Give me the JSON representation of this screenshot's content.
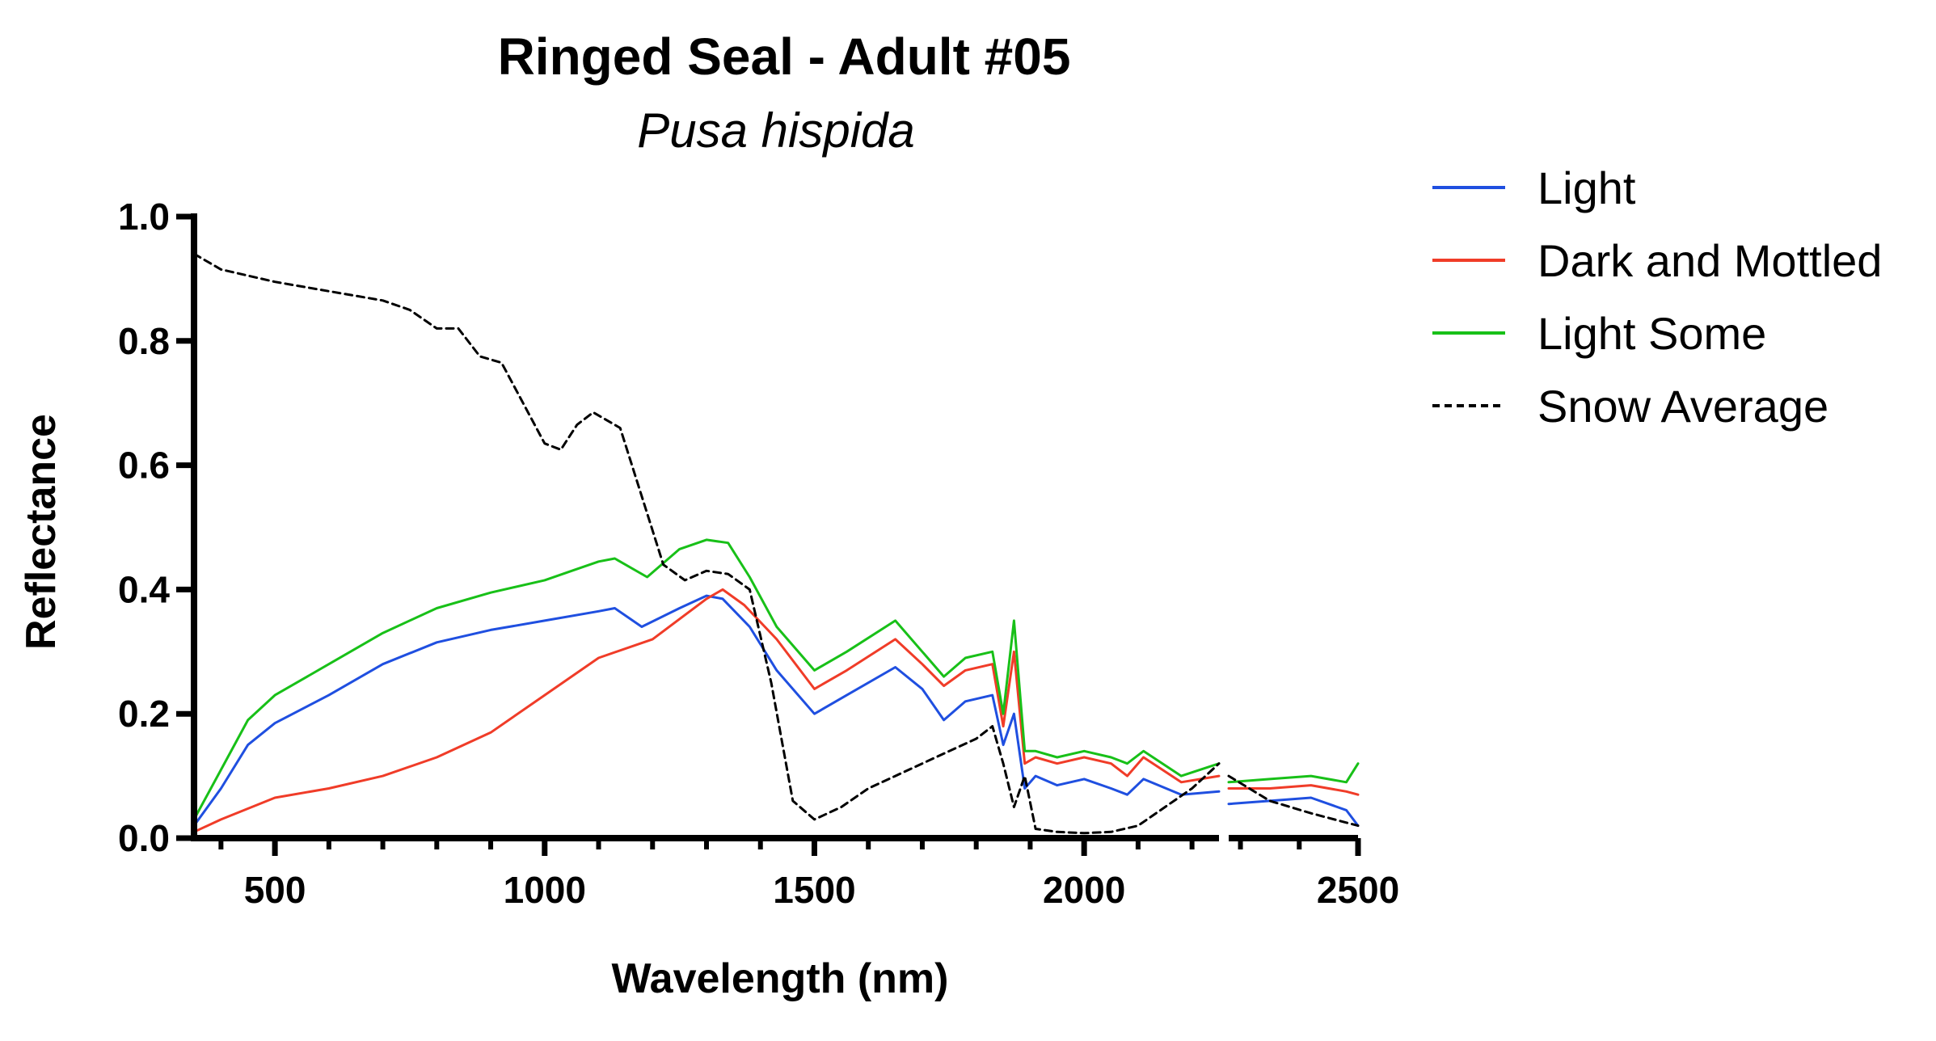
{
  "chart_data": {
    "type": "line",
    "title": "Ringed Seal - Adult #05",
    "subtitle": "Pusa hispida",
    "xlabel": "Wavelength (nm)",
    "ylabel": "Reflectance",
    "xlim": [
      350,
      2500
    ],
    "ylim": [
      0,
      1.0
    ],
    "axis_break_x": [
      2250,
      2280
    ],
    "x_ticks": [
      500,
      1000,
      1500,
      2000,
      2500
    ],
    "x_tick_labels": [
      "500",
      "1000",
      "1500",
      "2000",
      "2500"
    ],
    "y_ticks": [
      0.0,
      0.2,
      0.4,
      0.6,
      0.8,
      1.0
    ],
    "y_tick_labels": [
      "0.0",
      "0.2",
      "0.4",
      "0.6",
      "0.8",
      "1.0"
    ],
    "grid": false,
    "legend_position": "top-right",
    "series": [
      {
        "name": "Light",
        "color": "#1f4fe0",
        "dash": "solid",
        "points": [
          [
            350,
            0.02
          ],
          [
            400,
            0.08
          ],
          [
            450,
            0.15
          ],
          [
            500,
            0.185
          ],
          [
            600,
            0.23
          ],
          [
            700,
            0.28
          ],
          [
            800,
            0.315
          ],
          [
            900,
            0.335
          ],
          [
            1000,
            0.35
          ],
          [
            1100,
            0.365
          ],
          [
            1130,
            0.37
          ],
          [
            1180,
            0.34
          ],
          [
            1250,
            0.37
          ],
          [
            1300,
            0.39
          ],
          [
            1330,
            0.385
          ],
          [
            1380,
            0.34
          ],
          [
            1430,
            0.27
          ],
          [
            1500,
            0.2
          ],
          [
            1560,
            0.23
          ],
          [
            1650,
            0.275
          ],
          [
            1700,
            0.24
          ],
          [
            1740,
            0.19
          ],
          [
            1780,
            0.22
          ],
          [
            1830,
            0.23
          ],
          [
            1850,
            0.15
          ],
          [
            1870,
            0.2
          ],
          [
            1890,
            0.08
          ],
          [
            1910,
            0.1
          ],
          [
            1950,
            0.085
          ],
          [
            2000,
            0.095
          ],
          [
            2050,
            0.08
          ],
          [
            2080,
            0.07
          ],
          [
            2110,
            0.095
          ],
          [
            2180,
            0.07
          ],
          [
            2250,
            0.075
          ],
          [
            2280,
            0.055
          ],
          [
            2350,
            0.06
          ],
          [
            2420,
            0.065
          ],
          [
            2480,
            0.045
          ],
          [
            2500,
            0.02
          ]
        ]
      },
      {
        "name": "Dark and Mottled",
        "color": "#f03c28",
        "dash": "solid",
        "points": [
          [
            350,
            0.01
          ],
          [
            400,
            0.03
          ],
          [
            500,
            0.065
          ],
          [
            600,
            0.08
          ],
          [
            700,
            0.1
          ],
          [
            800,
            0.13
          ],
          [
            900,
            0.17
          ],
          [
            1000,
            0.23
          ],
          [
            1100,
            0.29
          ],
          [
            1200,
            0.32
          ],
          [
            1300,
            0.385
          ],
          [
            1330,
            0.4
          ],
          [
            1370,
            0.375
          ],
          [
            1430,
            0.32
          ],
          [
            1500,
            0.24
          ],
          [
            1560,
            0.27
          ],
          [
            1650,
            0.32
          ],
          [
            1700,
            0.28
          ],
          [
            1740,
            0.245
          ],
          [
            1780,
            0.27
          ],
          [
            1830,
            0.28
          ],
          [
            1850,
            0.18
          ],
          [
            1870,
            0.3
          ],
          [
            1890,
            0.12
          ],
          [
            1910,
            0.13
          ],
          [
            1950,
            0.12
          ],
          [
            2000,
            0.13
          ],
          [
            2050,
            0.12
          ],
          [
            2080,
            0.1
          ],
          [
            2110,
            0.13
          ],
          [
            2180,
            0.09
          ],
          [
            2250,
            0.1
          ],
          [
            2280,
            0.08
          ],
          [
            2350,
            0.08
          ],
          [
            2420,
            0.085
          ],
          [
            2480,
            0.075
          ],
          [
            2500,
            0.07
          ]
        ]
      },
      {
        "name": "Light Some",
        "color": "#18c018",
        "dash": "solid",
        "points": [
          [
            350,
            0.03
          ],
          [
            400,
            0.11
          ],
          [
            450,
            0.19
          ],
          [
            500,
            0.23
          ],
          [
            600,
            0.28
          ],
          [
            700,
            0.33
          ],
          [
            800,
            0.37
          ],
          [
            900,
            0.395
          ],
          [
            1000,
            0.415
          ],
          [
            1050,
            0.43
          ],
          [
            1100,
            0.445
          ],
          [
            1130,
            0.45
          ],
          [
            1190,
            0.42
          ],
          [
            1250,
            0.465
          ],
          [
            1300,
            0.48
          ],
          [
            1340,
            0.475
          ],
          [
            1380,
            0.42
          ],
          [
            1430,
            0.34
          ],
          [
            1500,
            0.27
          ],
          [
            1560,
            0.3
          ],
          [
            1650,
            0.35
          ],
          [
            1700,
            0.3
          ],
          [
            1740,
            0.26
          ],
          [
            1780,
            0.29
          ],
          [
            1830,
            0.3
          ],
          [
            1850,
            0.2
          ],
          [
            1870,
            0.35
          ],
          [
            1890,
            0.14
          ],
          [
            1910,
            0.14
          ],
          [
            1950,
            0.13
          ],
          [
            2000,
            0.14
          ],
          [
            2050,
            0.13
          ],
          [
            2080,
            0.12
          ],
          [
            2110,
            0.14
          ],
          [
            2180,
            0.1
          ],
          [
            2250,
            0.12
          ],
          [
            2280,
            0.09
          ],
          [
            2350,
            0.095
          ],
          [
            2420,
            0.1
          ],
          [
            2480,
            0.09
          ],
          [
            2500,
            0.12
          ]
        ]
      },
      {
        "name": "Snow Average",
        "color": "#000000",
        "dash": "dashed",
        "points": [
          [
            350,
            0.94
          ],
          [
            400,
            0.915
          ],
          [
            500,
            0.895
          ],
          [
            600,
            0.88
          ],
          [
            700,
            0.865
          ],
          [
            750,
            0.85
          ],
          [
            800,
            0.82
          ],
          [
            840,
            0.82
          ],
          [
            880,
            0.775
          ],
          [
            920,
            0.765
          ],
          [
            960,
            0.7
          ],
          [
            1000,
            0.635
          ],
          [
            1030,
            0.625
          ],
          [
            1060,
            0.665
          ],
          [
            1090,
            0.685
          ],
          [
            1140,
            0.66
          ],
          [
            1180,
            0.55
          ],
          [
            1220,
            0.44
          ],
          [
            1260,
            0.415
          ],
          [
            1300,
            0.43
          ],
          [
            1340,
            0.425
          ],
          [
            1380,
            0.4
          ],
          [
            1420,
            0.25
          ],
          [
            1460,
            0.06
          ],
          [
            1500,
            0.03
          ],
          [
            1550,
            0.05
          ],
          [
            1600,
            0.08
          ],
          [
            1650,
            0.1
          ],
          [
            1700,
            0.12
          ],
          [
            1750,
            0.14
          ],
          [
            1800,
            0.16
          ],
          [
            1830,
            0.18
          ],
          [
            1850,
            0.12
          ],
          [
            1870,
            0.05
          ],
          [
            1890,
            0.1
          ],
          [
            1910,
            0.015
          ],
          [
            1950,
            0.01
          ],
          [
            2000,
            0.008
          ],
          [
            2050,
            0.01
          ],
          [
            2100,
            0.02
          ],
          [
            2150,
            0.05
          ],
          [
            2200,
            0.08
          ],
          [
            2250,
            0.12
          ],
          [
            2280,
            0.1
          ],
          [
            2350,
            0.06
          ],
          [
            2420,
            0.04
          ],
          [
            2480,
            0.025
          ],
          [
            2500,
            0.02
          ]
        ]
      }
    ]
  }
}
